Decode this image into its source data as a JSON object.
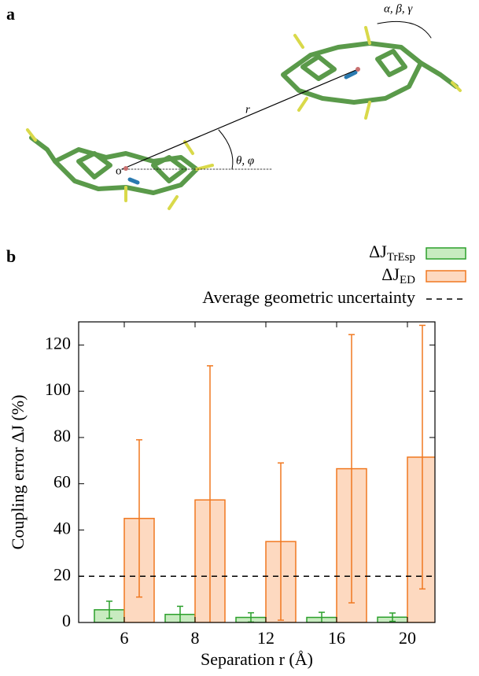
{
  "panel_labels": [
    "a",
    "b"
  ],
  "molecule_labels": {
    "separation": "r",
    "orientation_angles": "θ, φ",
    "rotation_angles": "α, β, γ",
    "origin": "o"
  },
  "chart_data": {
    "type": "bar",
    "xlabel": "Separation r (Å)",
    "ylabel": "Coupling error ΔJ (%)",
    "categories": [
      "6",
      "8",
      "12",
      "16",
      "20"
    ],
    "series": [
      {
        "name": "ΔJ",
        "subscript": "TrEsp",
        "color": "#2ca02c",
        "fill": "#c8ebc0",
        "values": [
          5.5,
          3.5,
          2.2,
          2.2,
          2.3
        ],
        "errors": [
          3.7,
          3.5,
          2,
          2.2,
          1.8
        ]
      },
      {
        "name": "ΔJ",
        "subscript": "ED",
        "color": "#f07820",
        "fill": "#fdd9c0",
        "values": [
          45,
          53,
          35,
          66.5,
          71.5
        ],
        "errors": [
          34,
          58,
          34,
          58,
          57
        ]
      }
    ],
    "reference_lines": [
      {
        "name": "Average geometric uncertainty",
        "value": 20,
        "color": "#000000"
      }
    ],
    "ylim": [
      0,
      130
    ],
    "yticks": [
      0,
      20,
      40,
      60,
      80,
      100,
      120
    ]
  }
}
